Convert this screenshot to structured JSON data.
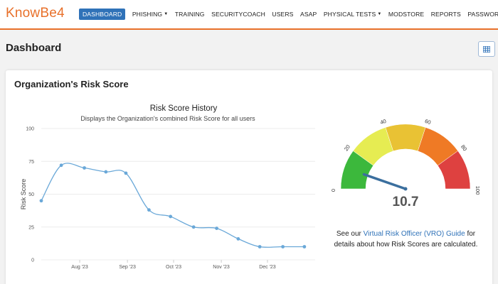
{
  "brand": {
    "logo_text": "KnowBe4",
    "accent": "#e8702a",
    "primary": "#2f72b8"
  },
  "nav": [
    {
      "label": "DASHBOARD",
      "active": true,
      "dropdown": false
    },
    {
      "label": "PHISHING",
      "active": false,
      "dropdown": true
    },
    {
      "label": "TRAINING",
      "active": false,
      "dropdown": false
    },
    {
      "label": "SECURITYCOACH",
      "active": false,
      "dropdown": false
    },
    {
      "label": "USERS",
      "active": false,
      "dropdown": false
    },
    {
      "label": "ASAP",
      "active": false,
      "dropdown": false
    },
    {
      "label": "PHYSICAL TESTS",
      "active": false,
      "dropdown": true
    },
    {
      "label": "MODSTORE",
      "active": false,
      "dropdown": false
    },
    {
      "label": "REPORTS",
      "active": false,
      "dropdown": false
    },
    {
      "label": "PASSWORDIQ",
      "active": false,
      "dropdown": false
    }
  ],
  "page": {
    "title": "Dashboard",
    "view_toggle_icon": "grid-icon"
  },
  "card": {
    "title": "Organization's Risk Score"
  },
  "chart_data": {
    "type": "line",
    "title": "Risk Score History",
    "subtitle": "Displays the Organization's combined Risk Score for all users",
    "xlabel": "",
    "ylabel": "Risk Score",
    "ylim": [
      0,
      100
    ],
    "yticks": [
      0,
      25,
      50,
      75,
      100
    ],
    "x_tick_labels": [
      {
        "label": "Aug '23",
        "x": "2023-08-01"
      },
      {
        "label": "Sep '23",
        "x": "2023-09-01"
      },
      {
        "label": "Oct '23",
        "x": "2023-10-01"
      },
      {
        "label": "Nov '23",
        "x": "2023-11-01"
      },
      {
        "label": "Dec '23",
        "x": "2023-12-01"
      }
    ],
    "x_range": [
      "2023-07-07",
      "2024-01-01"
    ],
    "series": [
      {
        "name": "",
        "color": "#6aa8d8",
        "points": [
          {
            "x": "2023-07-07",
            "y": 45
          },
          {
            "x": "2023-07-20",
            "y": 72
          },
          {
            "x": "2023-08-04",
            "y": 70
          },
          {
            "x": "2023-08-18",
            "y": 67
          },
          {
            "x": "2023-08-31",
            "y": 66
          },
          {
            "x": "2023-09-15",
            "y": 38
          },
          {
            "x": "2023-09-29",
            "y": 33
          },
          {
            "x": "2023-10-14",
            "y": 25
          },
          {
            "x": "2023-10-29",
            "y": 24
          },
          {
            "x": "2023-11-12",
            "y": 16
          },
          {
            "x": "2023-11-26",
            "y": 10
          },
          {
            "x": "2023-12-11",
            "y": 10
          },
          {
            "x": "2023-12-25",
            "y": 10
          }
        ]
      }
    ],
    "grid": true,
    "legend": "none"
  },
  "gauge": {
    "value": 10.7,
    "value_label": "10.7",
    "min": 0,
    "max": 100,
    "ticks": [
      "0",
      "20",
      "40",
      "60",
      "80",
      "100"
    ],
    "bands": [
      {
        "from": 0,
        "to": 20,
        "color": "#3cb83c"
      },
      {
        "from": 20,
        "to": 40,
        "color": "#e6ec52"
      },
      {
        "from": 40,
        "to": 60,
        "color": "#e9c234"
      },
      {
        "from": 60,
        "to": 80,
        "color": "#ef7a25"
      },
      {
        "from": 80,
        "to": 100,
        "color": "#de4140"
      }
    ],
    "needle_color": "#3b6f9e"
  },
  "vro_note": {
    "prefix": "See our ",
    "link": "Virtual Risk Officer (VRO) Guide",
    "suffix": " for details about how Risk Scores are calculated."
  }
}
